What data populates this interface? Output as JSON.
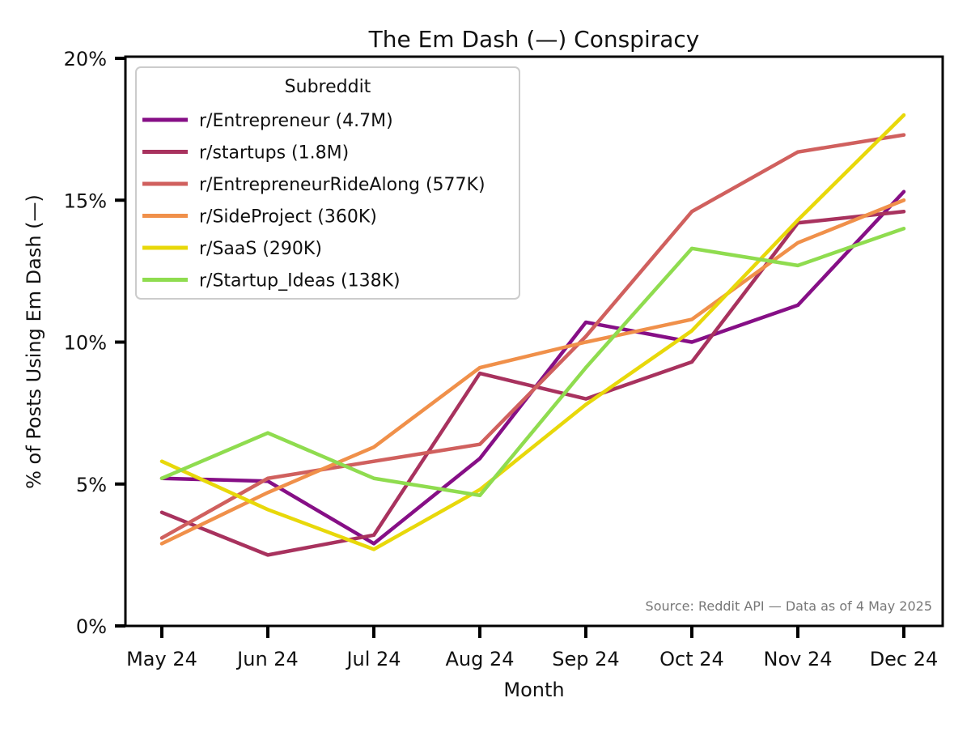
{
  "chart_data": {
    "type": "line",
    "title": "The Em Dash (—) Conspiracy",
    "xlabel": "Month",
    "ylabel": "% of Posts Using Em Dash (—)",
    "categories": [
      "May 24",
      "Jun 24",
      "Jul 24",
      "Aug 24",
      "Sep 24",
      "Oct 24",
      "Nov 24",
      "Dec 24"
    ],
    "ylim": [
      0,
      20
    ],
    "yticks": [
      "0%",
      "5%",
      "10%",
      "15%",
      "20%"
    ],
    "ytick_values": [
      0,
      5,
      10,
      15,
      20
    ],
    "grid": false,
    "legend": {
      "title": "Subreddit",
      "placement": "top-left"
    },
    "annotation": "Source: Reddit API — Data as of 4 May 2025",
    "series": [
      {
        "name": "r/Entrepreneur (4.7M)",
        "color": "#860f86",
        "values": [
          5.2,
          5.1,
          2.9,
          5.9,
          10.7,
          10.0,
          11.3,
          15.3
        ]
      },
      {
        "name": "r/startups (1.8M)",
        "color": "#a8325e",
        "values": [
          4.0,
          2.5,
          3.2,
          8.9,
          8.0,
          9.3,
          14.2,
          14.6
        ]
      },
      {
        "name": "r/EntrepreneurRideAlong (577K)",
        "color": "#d0605e",
        "values": [
          3.1,
          5.2,
          5.8,
          6.4,
          10.2,
          14.6,
          16.7,
          17.3
        ]
      },
      {
        "name": "r/SideProject (360K)",
        "color": "#f0904a",
        "values": [
          2.9,
          4.7,
          6.3,
          9.1,
          10.0,
          10.8,
          13.5,
          15.0
        ]
      },
      {
        "name": "r/SaaS (290K)",
        "color": "#e8d80a",
        "values": [
          5.8,
          4.1,
          2.7,
          4.8,
          7.8,
          10.4,
          14.3,
          18.0
        ]
      },
      {
        "name": "r/Startup_Ideas (138K)",
        "color": "#8fdc4f",
        "values": [
          5.2,
          6.8,
          5.2,
          4.6,
          9.1,
          13.3,
          12.7,
          14.0
        ]
      }
    ]
  }
}
